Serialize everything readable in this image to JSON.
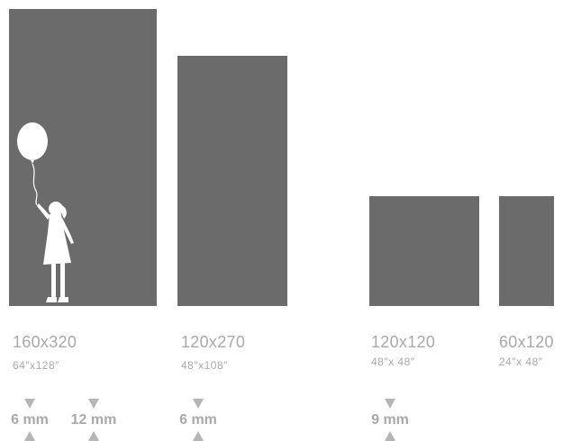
{
  "panels": [
    {
      "size": "160x320",
      "inches": "64″x128″"
    },
    {
      "size": "120x270",
      "inches": "48″x108″"
    },
    {
      "size": "120x120",
      "inches": "48″x 48″"
    },
    {
      "size": "60x120",
      "inches": "24″x 48″"
    }
  ],
  "thickness": [
    "6 mm",
    "12 mm",
    "6 mm",
    "9 mm"
  ],
  "icons": {
    "silhouette": "girl-with-balloon-icon",
    "arrow_down": "triangle-down-icon",
    "arrow_up": "triangle-up-icon"
  },
  "colors": {
    "panel": "#6b6b6b",
    "label": "#a9a9a9",
    "arrow": "#b5b5b5",
    "silhouette": "#ffffff"
  }
}
